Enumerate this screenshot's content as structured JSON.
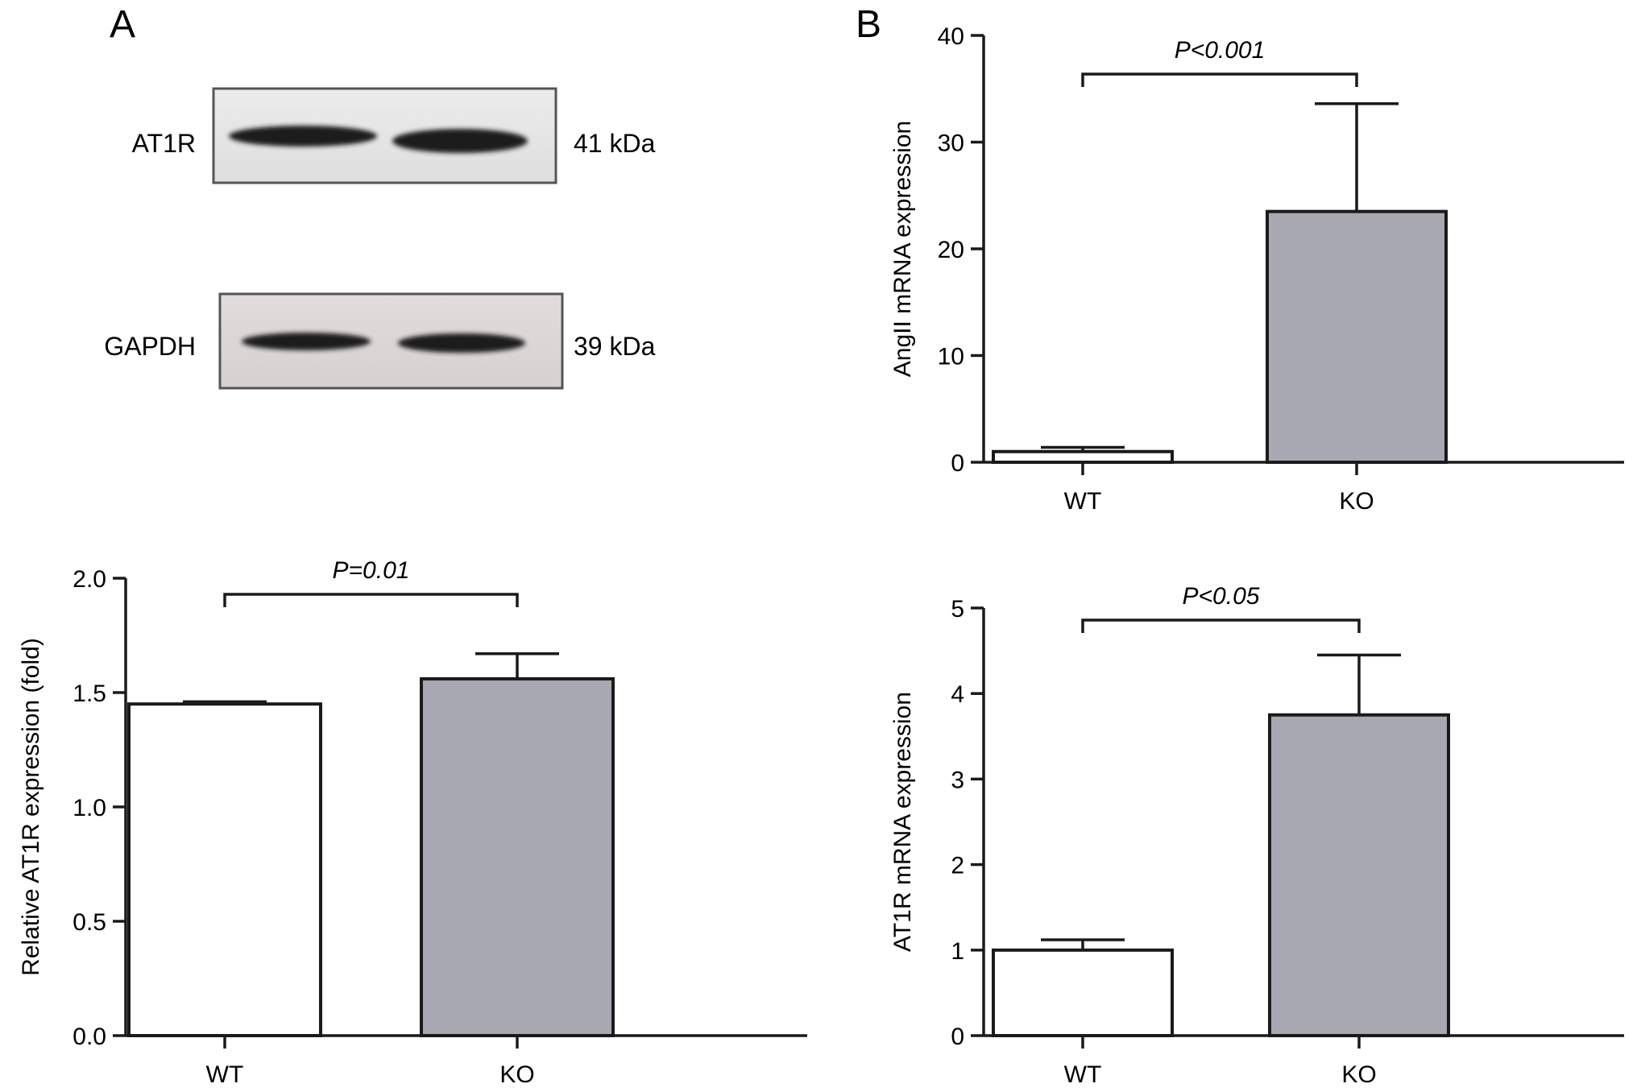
{
  "panels": {
    "a_letter": "A",
    "b_letter": "B"
  },
  "blot": {
    "rows": [
      {
        "protein": "AT1R",
        "mass": "41 kDa"
      },
      {
        "protein": "GAPDH",
        "mass": "39 kDa"
      }
    ]
  },
  "colors": {
    "wt_bar": "#ffffff",
    "ko_bar": "#a8a8b2",
    "axis": "#1a1a1a"
  },
  "chart_data": [
    {
      "id": "a",
      "type": "bar",
      "categories": [
        "WT",
        "KO"
      ],
      "values": [
        1.45,
        1.56
      ],
      "errors": [
        0.01,
        0.11
      ],
      "ylabel": "Relative AT1R expression (fold)",
      "xlabel": "",
      "ylim": [
        0,
        2.0
      ],
      "yticks": [
        0.0,
        0.5,
        1.0,
        1.5,
        2.0
      ],
      "ytick_labels": [
        "0.0",
        "0.5",
        "1.0",
        "1.5",
        "2.0"
      ],
      "annotation": "P=0.01",
      "grid": false
    },
    {
      "id": "b_top",
      "type": "bar",
      "categories": [
        "WT",
        "KO"
      ],
      "values": [
        1.0,
        23.5
      ],
      "errors": [
        0.4,
        10.1
      ],
      "ylabel": "AngII mRNA expression",
      "xlabel": "",
      "ylim": [
        0,
        40
      ],
      "yticks": [
        0,
        10,
        20,
        30,
        40
      ],
      "ytick_labels": [
        "0",
        "10",
        "20",
        "30",
        "40"
      ],
      "annotation": "P<0.001",
      "grid": false
    },
    {
      "id": "b_bottom",
      "type": "bar",
      "categories": [
        "WT",
        "KO"
      ],
      "values": [
        1.0,
        3.75
      ],
      "errors": [
        0.12,
        0.7
      ],
      "ylabel": "AT1R mRNA expression",
      "xlabel": "",
      "ylim": [
        0,
        5
      ],
      "yticks": [
        0,
        1,
        2,
        3,
        4,
        5
      ],
      "ytick_labels": [
        "0",
        "1",
        "2",
        "3",
        "4",
        "5"
      ],
      "annotation": "P<0.05",
      "grid": false
    }
  ]
}
